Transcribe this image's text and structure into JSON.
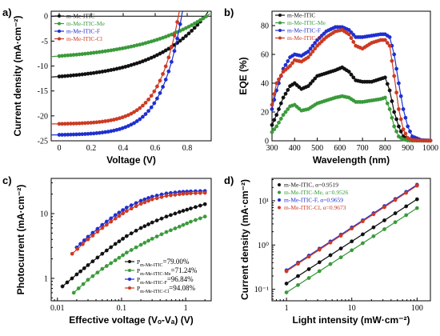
{
  "chart_data": [
    {
      "panel": "a)",
      "type": "line",
      "xlabel": "Voltage (V)",
      "ylabel": "Current density (mA·cm⁻²)",
      "xlim": [
        -0.05,
        0.95
      ],
      "ylim": [
        -25,
        1
      ],
      "xticks": [
        0,
        0.2,
        0.4,
        0.6,
        0.8
      ],
      "xtick_labels": [
        "0",
        "0.2",
        "0.4",
        "0.6",
        "0.8"
      ],
      "yticks": [
        0,
        -5,
        -10,
        -15,
        -20,
        -25
      ],
      "ytick_labels": [
        "0",
        "-5",
        "-10",
        "-15",
        "-20",
        "-25"
      ],
      "legend_position": "top-left",
      "series": [
        {
          "name": "m-Me-ITIC",
          "color": "#111111",
          "jsc": 12.1,
          "voc": 0.91,
          "k": 0.35,
          "x": [
            0,
            0.1,
            0.2,
            0.3,
            0.4,
            0.5,
            0.6,
            0.7,
            0.8,
            0.85,
            0.9
          ],
          "y": [
            -12.1,
            -11.9,
            -11.7,
            -11.4,
            -11.0,
            -10.4,
            -9.5,
            -8.0,
            -5.2,
            -2.9,
            -0.3
          ]
        },
        {
          "name": "m-Me-ITIC-Me",
          "color": "#3a9a3a",
          "jsc": 8.0,
          "voc": 0.92,
          "k": 0.45,
          "x": [
            0,
            0.1,
            0.2,
            0.3,
            0.4,
            0.5,
            0.6,
            0.7,
            0.8,
            0.85,
            0.9
          ],
          "y": [
            -8.0,
            -7.8,
            -7.6,
            -7.3,
            -7.0,
            -6.5,
            -5.9,
            -4.9,
            -3.3,
            -2.1,
            -0.5
          ]
        },
        {
          "name": "m-Me-ITIC-F",
          "color": "#1f2fd0",
          "jsc": 23.8,
          "voc": 0.765,
          "k": 0.17,
          "x": [
            0,
            0.1,
            0.2,
            0.3,
            0.4,
            0.5,
            0.6,
            0.65,
            0.7,
            0.73,
            0.76
          ],
          "y": [
            -23.8,
            -23.5,
            -23.1,
            -22.6,
            -22.0,
            -20.9,
            -18.5,
            -15.8,
            -10.4,
            -6.0,
            -0.6
          ]
        },
        {
          "name": "m-Me-ITIC-Cl",
          "color": "#cc3a22",
          "jsc": 21.6,
          "voc": 0.745,
          "k": 0.17,
          "x": [
            0,
            0.1,
            0.2,
            0.3,
            0.4,
            0.5,
            0.6,
            0.65,
            0.7,
            0.72,
            0.74
          ],
          "y": [
            -21.6,
            -21.3,
            -21.0,
            -20.5,
            -19.9,
            -18.8,
            -16.3,
            -13.3,
            -7.5,
            -4.6,
            -1.0
          ]
        }
      ]
    },
    {
      "panel": "b)",
      "type": "line",
      "xlabel": "Wavelength (nm)",
      "ylabel": "EQE (%)",
      "xlim": [
        300,
        1000
      ],
      "ylim": [
        0,
        90
      ],
      "xticks": [
        300,
        400,
        500,
        600,
        700,
        800,
        900,
        1000
      ],
      "xtick_labels": [
        "300",
        "400",
        "500",
        "600",
        "700",
        "800",
        "900",
        "1000"
      ],
      "yticks": [
        0,
        20,
        40,
        60,
        80
      ],
      "ytick_labels": [
        "0",
        "20",
        "40",
        "60",
        "80"
      ],
      "legend_position": "top-left",
      "series": [
        {
          "name": "m-Me-ITIC",
          "color": "#111111",
          "x": [
            300,
            320,
            350,
            380,
            400,
            430,
            460,
            500,
            540,
            580,
            610,
            640,
            670,
            700,
            740,
            780,
            800,
            820,
            840,
            860,
            880,
            900,
            920,
            960,
            1000
          ],
          "y": [
            11,
            18,
            30,
            38,
            40,
            36,
            38,
            45,
            47,
            49,
            51,
            48,
            42,
            41,
            41,
            43,
            44,
            35,
            20,
            10,
            3,
            1,
            0.5,
            0.2,
            0.1
          ]
        },
        {
          "name": "m-Me-ITIC-Me",
          "color": "#3a9a3a",
          "x": [
            300,
            320,
            350,
            380,
            400,
            430,
            460,
            500,
            540,
            580,
            610,
            640,
            670,
            700,
            740,
            780,
            800,
            820,
            840,
            860,
            880,
            900,
            920,
            960,
            1000
          ],
          "y": [
            6,
            10,
            18,
            24,
            25,
            21,
            22,
            26,
            28,
            30,
            31,
            30,
            27,
            27,
            28,
            29,
            30,
            22,
            10,
            3,
            1,
            0.3,
            0.1,
            0.1,
            0.1
          ]
        },
        {
          "name": "m-Me-ITIC-F",
          "color": "#1f2fd0",
          "x": [
            300,
            320,
            350,
            380,
            400,
            430,
            460,
            500,
            540,
            580,
            610,
            640,
            670,
            700,
            740,
            780,
            800,
            820,
            840,
            860,
            880,
            900,
            920,
            960,
            1000
          ],
          "y": [
            22,
            35,
            50,
            58,
            60,
            59,
            62,
            70,
            76,
            79,
            79,
            77,
            72,
            72,
            73,
            74,
            74,
            72,
            60,
            40,
            22,
            10,
            3,
            0.5,
            0.2
          ]
        },
        {
          "name": "m-Me-ITIC-Cl",
          "color": "#cc3a22",
          "x": [
            300,
            320,
            350,
            380,
            400,
            430,
            460,
            500,
            540,
            580,
            610,
            640,
            670,
            700,
            740,
            780,
            800,
            820,
            840,
            860,
            880,
            900,
            920,
            960,
            1000
          ],
          "y": [
            25,
            40,
            48,
            52,
            56,
            55,
            58,
            66,
            72,
            76,
            77,
            74,
            66,
            64,
            68,
            70,
            70,
            66,
            45,
            22,
            8,
            2,
            0.5,
            0.2,
            0.1
          ]
        }
      ]
    },
    {
      "panel": "c)",
      "type": "scatter",
      "xlabel": "Effective voltage (Vₒ-Vₐ) (V)",
      "ylabel": "Photocurrent (mA·cm⁻²)",
      "xscale": "log",
      "yscale": "log",
      "xlim": [
        0.008,
        2.5
      ],
      "ylim": [
        0.45,
        35
      ],
      "xticks": [
        0.01,
        0.1,
        1
      ],
      "xtick_labels": [
        "0.01",
        "0.1",
        "1"
      ],
      "yticks": [
        1,
        10
      ],
      "ytick_labels": [
        "1",
        "10"
      ],
      "legend_position": "bottom-right",
      "legend_entries": [
        {
          "main": "P",
          "sub": "m-Me-ITIC",
          "value": "=79.00%"
        },
        {
          "main": "P",
          "sub": "m-Me-ITIC-Me",
          "value": "=71.24%"
        },
        {
          "main": "P",
          "sub": "m-Me-ITIC-F",
          "value": "=96.84%"
        },
        {
          "main": "P",
          "sub": "m-Me-ITIC-Cl",
          "value": "=94.08%"
        }
      ],
      "series": [
        {
          "name": "m-Me-ITIC",
          "color": "#111111",
          "x": [
            0.012,
            0.02,
            0.03,
            0.05,
            0.08,
            0.12,
            0.2,
            0.3,
            0.5,
            0.8,
            1.2,
            2.0
          ],
          "y": [
            0.75,
            1.15,
            1.6,
            2.4,
            3.4,
            4.5,
            6.0,
            7.3,
            9.0,
            10.6,
            12.0,
            14.0
          ]
        },
        {
          "name": "m-Me-ITIC-Me",
          "color": "#3a9a3a",
          "x": [
            0.018,
            0.03,
            0.05,
            0.08,
            0.12,
            0.2,
            0.3,
            0.5,
            0.8,
            1.2,
            2.0
          ],
          "y": [
            0.6,
            0.95,
            1.4,
            1.9,
            2.5,
            3.3,
            4.1,
            5.2,
            6.3,
            7.5,
            9.0
          ]
        },
        {
          "name": "m-Me-ITIC-F",
          "color": "#1f2fd0",
          "x": [
            0.02,
            0.03,
            0.05,
            0.08,
            0.12,
            0.2,
            0.3,
            0.5,
            0.8,
            1.2,
            2.0
          ],
          "y": [
            3.0,
            4.4,
            6.7,
            9.5,
            12.4,
            15.8,
            18.3,
            20.5,
            21.6,
            22.1,
            22.4
          ]
        },
        {
          "name": "m-Me-ITIC-Cl",
          "color": "#cc3a22",
          "x": [
            0.017,
            0.03,
            0.05,
            0.08,
            0.12,
            0.2,
            0.3,
            0.5,
            0.8,
            1.2,
            2.0
          ],
          "y": [
            2.4,
            4.0,
            6.0,
            8.4,
            11.0,
            14.2,
            16.6,
            18.8,
            20.0,
            20.6,
            21.0
          ]
        }
      ]
    },
    {
      "panel": "d)",
      "type": "scatter",
      "xlabel": "Light intensity (mW·cm⁻²)",
      "ylabel": "Current density (mA·cm⁻²)",
      "xscale": "log",
      "yscale": "log",
      "xlim": [
        0.6,
        160
      ],
      "ylim": [
        0.055,
        32
      ],
      "xticks": [
        1,
        10,
        100
      ],
      "xtick_labels": [
        "1",
        "10",
        "100"
      ],
      "yticks": [
        0.1,
        1,
        10
      ],
      "ytick_labels": [
        "10⁻¹",
        "10⁰",
        "10¹"
      ],
      "legend_position": "top-left",
      "series": [
        {
          "name": "m-Me-ITIC",
          "alpha_label": "α=0.9519",
          "color": "#111111",
          "alpha": 0.9519,
          "j1": 0.135
        },
        {
          "name": "m-Me-ITIC-Me",
          "alpha_label": "α=0.9526",
          "color": "#3a9a3a",
          "alpha": 0.9526,
          "j1": 0.085
        },
        {
          "name": "m-Me-ITIC-F",
          "alpha_label": "α=0.9659",
          "color": "#1f2fd0",
          "alpha": 0.9659,
          "j1": 0.27
        },
        {
          "name": "m-Me-ITIC-Cl",
          "alpha_label": "α=0.9673",
          "color": "#cc3a22",
          "alpha": 0.9673,
          "j1": 0.255
        }
      ],
      "intensities": [
        1,
        1.5,
        2.2,
        3.2,
        4.7,
        6.8,
        10,
        14.7,
        21.5,
        31.6,
        46.4,
        68,
        100
      ]
    }
  ]
}
